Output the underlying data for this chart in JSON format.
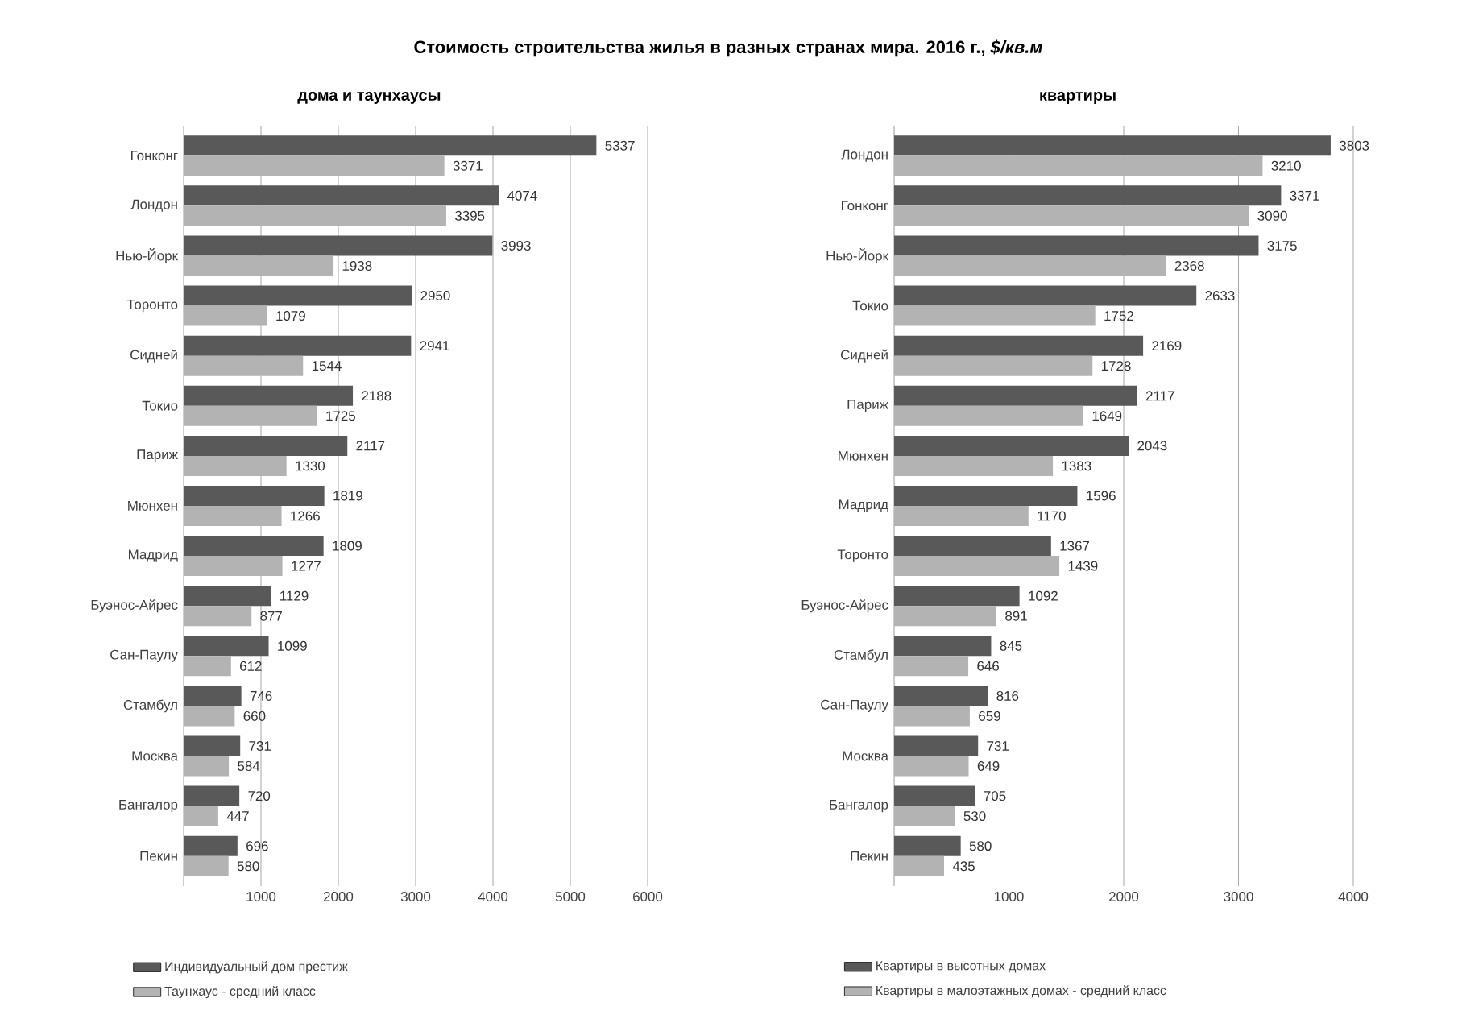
{
  "chart_data": [
    {
      "type": "bar",
      "orientation": "horizontal",
      "title": "Стоимость строительства жилья в разных странах мира. 2016 г., *$/кв.м*",
      "subtitle": "дома и таунхаусы",
      "categories": [
        "Гонконг",
        "Лондон",
        "Нью-Йорк",
        "Торонто",
        "Сидней",
        "Токио",
        "Париж",
        "Мюнхен",
        "Мадрид",
        "Буэнос-Айрес",
        "Сан-Паулу",
        "Стамбул",
        "Москва",
        "Бангалор",
        "Пекин"
      ],
      "series": [
        {
          "name": "Индивидуальный дом престиж",
          "color": "#595959",
          "values": [
            5337,
            4074,
            3993,
            2950,
            2941,
            2188,
            2117,
            1819,
            1809,
            1129,
            1099,
            746,
            731,
            720,
            696
          ]
        },
        {
          "name": "Таунхаус - средний класс",
          "color": "#b3b3b3",
          "values": [
            3371,
            3395,
            1938,
            1079,
            1544,
            1725,
            1330,
            1266,
            1277,
            877,
            612,
            660,
            584,
            447,
            580
          ]
        }
      ],
      "xlim": [
        0,
        6000
      ],
      "xticks": [
        1000,
        2000,
        3000,
        4000,
        5000,
        6000
      ],
      "grid": "x",
      "legend": "bottom",
      "data_labels": true
    },
    {
      "type": "bar",
      "orientation": "horizontal",
      "subtitle": "квартиры",
      "categories": [
        "Лондон",
        "Гонконг",
        "Нью-Йорк",
        "Токио",
        "Сидней",
        "Париж",
        "Мюнхен",
        "Мадрид",
        "Торонто",
        "Буэнос-Айрес",
        "Стамбул",
        "Сан-Паулу",
        "Москва",
        "Бангалор",
        "Пекин"
      ],
      "series": [
        {
          "name": "Квартиры в высотных домах",
          "color": "#595959",
          "values": [
            3803,
            3371,
            3175,
            2633,
            2169,
            2117,
            2043,
            1596,
            1367,
            1092,
            845,
            816,
            731,
            705,
            580
          ]
        },
        {
          "name": "Квартиры в малоэтажных домах - средний класс",
          "color": "#b3b3b3",
          "values": [
            3210,
            3090,
            2368,
            1752,
            1728,
            1649,
            1383,
            1170,
            1439,
            891,
            646,
            659,
            649,
            530,
            435
          ]
        }
      ],
      "xlim": [
        0,
        4000
      ],
      "xticks": [
        1000,
        2000,
        3000,
        4000
      ],
      "grid": "x",
      "legend": "bottom",
      "data_labels": true
    }
  ]
}
